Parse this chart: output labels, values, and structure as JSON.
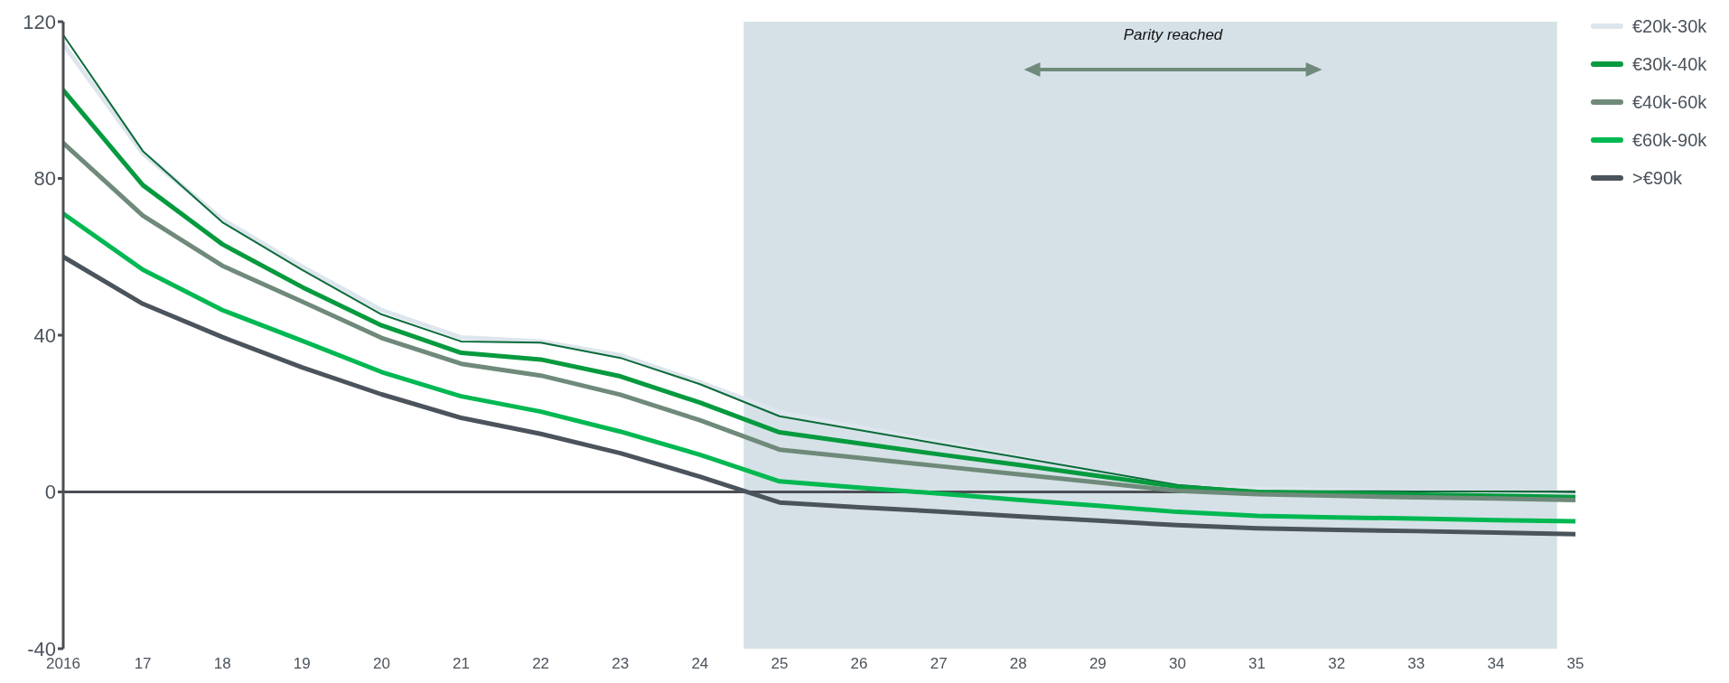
{
  "chart_data": {
    "type": "line",
    "x": [
      2016,
      2017,
      2018,
      2019,
      2020,
      2021,
      2022,
      2023,
      2024,
      2025,
      2026,
      2027,
      2028,
      2029,
      2030,
      2031,
      2032,
      2033,
      2034,
      2035
    ],
    "xlim": [
      2016,
      2035
    ],
    "xticks": [
      2016,
      {
        "value": 2017,
        "label": "17"
      },
      {
        "value": 2018,
        "label": "18"
      },
      {
        "value": 2019,
        "label": "19"
      },
      {
        "value": 2020,
        "label": "20"
      },
      {
        "value": 2021,
        "label": "21"
      },
      {
        "value": 2022,
        "label": "22"
      },
      {
        "value": 2023,
        "label": "23"
      },
      {
        "value": 2024,
        "label": "24"
      },
      {
        "value": 2025,
        "label": "25"
      },
      {
        "value": 2026,
        "label": "26"
      },
      {
        "value": 2027,
        "label": "27"
      },
      {
        "value": 2028,
        "label": "28"
      },
      {
        "value": 2029,
        "label": "29"
      },
      {
        "value": 2030,
        "label": "30"
      },
      {
        "value": 2031,
        "label": "31"
      },
      {
        "value": 2032,
        "label": "32"
      },
      {
        "value": 2033,
        "label": "33"
      },
      {
        "value": 2034,
        "label": "34"
      },
      {
        "value": 2035,
        "label": "35"
      }
    ],
    "ylim": [
      -40,
      120
    ],
    "yticks": [
      -40,
      0,
      40,
      80,
      120
    ],
    "series": [
      {
        "name": "€20k-30k",
        "color": "#dde6ec",
        "values": [
          114.3,
          86.4,
          69.5,
          57.5,
          46.4,
          39.4,
          38.4,
          34.9,
          28,
          20.3,
          16.5,
          12.7,
          8.9,
          5.2,
          1.4,
          0.8,
          0.4,
          0,
          -0.4,
          -0.8
        ]
      },
      {
        "color": "#0a6b3a",
        "values": [
          116.6,
          87,
          68.8,
          56.7,
          45.3,
          38.4,
          38.1,
          34.2,
          27.5,
          19.3,
          15.8,
          12.3,
          8.8,
          5.3,
          1.8,
          0.2,
          0.2,
          0.1,
          0.1,
          0
        ]
      },
      {
        "name": "€30k-40k",
        "color": "#069a3e",
        "values": [
          102.5,
          78.3,
          63.2,
          52.3,
          42.5,
          35.5,
          33.8,
          29.5,
          22.8,
          15.2,
          12.4,
          9.6,
          6.9,
          4.1,
          1.3,
          0,
          -0.3,
          -0.7,
          -1,
          -1.3
        ]
      },
      {
        "name": "€40k-60k",
        "color": "#6f8a7a",
        "values": [
          89,
          70.5,
          57.7,
          48.6,
          39.3,
          32.7,
          29.7,
          24.8,
          18.3,
          10.8,
          8.7,
          6.6,
          4.5,
          2.4,
          0.3,
          -0.6,
          -1,
          -1.4,
          -1.7,
          -2.1
        ]
      },
      {
        "name": "€60k-90k",
        "color": "#00b852",
        "values": [
          71,
          56.7,
          46.4,
          38.6,
          30.6,
          24.4,
          20.5,
          15.4,
          9.5,
          2.7,
          1.1,
          -0.4,
          -2,
          -3.5,
          -5.1,
          -6.1,
          -6.5,
          -6.8,
          -7.2,
          -7.5
        ]
      },
      {
        "name": ">€90k",
        "color": "#4b535c",
        "values": [
          60,
          48,
          39.5,
          31.8,
          24.9,
          18.9,
          14.8,
          9.9,
          3.9,
          -2.7,
          -3.9,
          -5,
          -6.2,
          -7.3,
          -8.5,
          -9.3,
          -9.7,
          -10,
          -10.4,
          -10.8
        ]
      }
    ],
    "bands": [
      {
        "axis": "x",
        "from": 2024.55,
        "to": 2034.77,
        "color": "#d6e1e7"
      }
    ],
    "ref_lines": [
      {
        "axis": "y",
        "value": 0,
        "color": "#4b4f54"
      }
    ],
    "annotations": [
      "Parity reached"
    ],
    "legend": "top right",
    "grid": false,
    "marker": "none",
    "line_style": "solid"
  }
}
